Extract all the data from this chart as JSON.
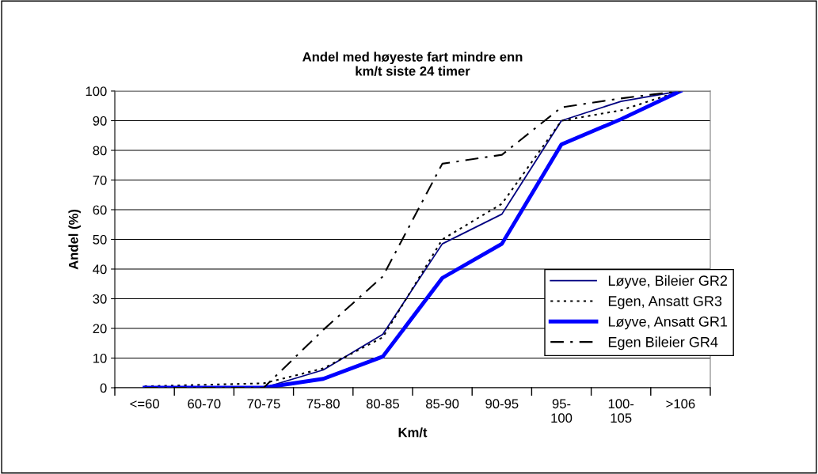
{
  "chart_data": {
    "type": "line",
    "title": "Andel med høyeste fart mindre enn\nkm/t siste 24 timer",
    "xlabel": "Km/t",
    "ylabel": "Andel (%)",
    "categories": [
      "<=60",
      "60-70",
      "70-75",
      "75-80",
      "80-85",
      "85-90",
      "90-95",
      "95-100",
      "100-105",
      ">106"
    ],
    "series": [
      {
        "name": "Løyve, Bileier GR2",
        "color": "#000080",
        "line_style": "solid",
        "values": [
          0,
          0,
          0,
          6,
          18,
          48.5,
          58.5,
          90,
          96.5,
          100
        ]
      },
      {
        "name": "Egen, Ansatt GR3",
        "color": "#000000",
        "line_style": "dotted",
        "values": [
          0.5,
          1,
          1.5,
          6.5,
          17,
          50,
          62,
          90,
          93.5,
          100
        ]
      },
      {
        "name": "Løyve, Ansatt GR1",
        "color": "#0000ff",
        "line_style": "solid",
        "values": [
          0,
          0,
          0,
          3,
          10.5,
          37,
          48.5,
          82,
          90.5,
          100
        ]
      },
      {
        "name": "Egen Bileier GR4",
        "color": "#000000",
        "line_style": "dashdot",
        "values": [
          0,
          0,
          0,
          19.5,
          37.5,
          75.5,
          78.5,
          94.5,
          97.5,
          100
        ]
      }
    ],
    "ylim": [
      0,
      100
    ],
    "yticks": [
      0,
      10,
      20,
      30,
      40,
      50,
      60,
      70,
      80,
      90,
      100
    ],
    "grid": "y",
    "legend": "right",
    "marker": "none"
  }
}
